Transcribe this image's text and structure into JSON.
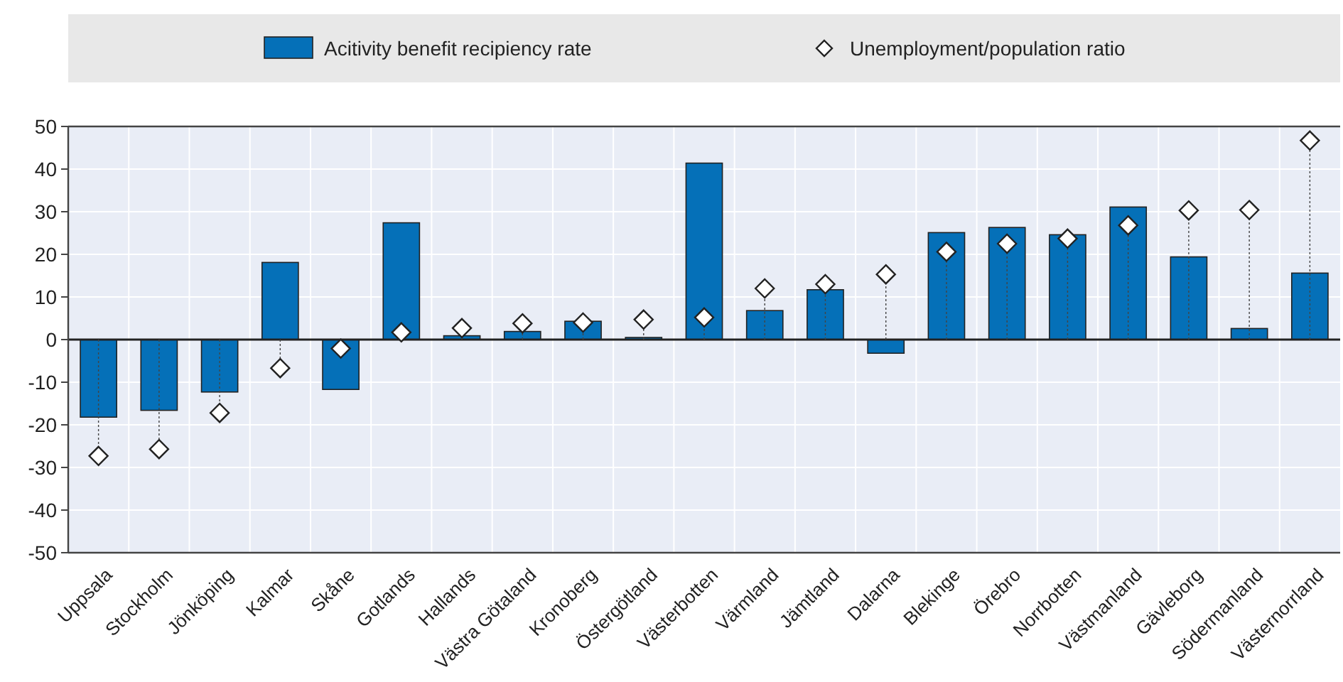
{
  "chart_data": {
    "type": "bar",
    "categories": [
      "Uppsala",
      "Stockholm",
      "Jönköping",
      "Kalmar",
      "Skåne",
      "Gotlands",
      "Hallands",
      "Västra Götaland",
      "Kronoberg",
      "Östergötland",
      "Västerbotten",
      "Värmland",
      "Jämtland",
      "Dalarna",
      "Blekinge",
      "Örebro",
      "Norrbotten",
      "Västmanland",
      "Gävleborg",
      "Södermanland",
      "Västernorrland"
    ],
    "series": [
      {
        "name": "Acitivity benefit recipiency rate",
        "color": "#0570b8",
        "values": [
          -18.2,
          -16.6,
          -12.3,
          18.1,
          -11.7,
          27.4,
          0.9,
          1.9,
          4.3,
          0.5,
          41.4,
          6.8,
          11.7,
          -3.2,
          25.1,
          26.3,
          24.6,
          31.1,
          19.4,
          2.6,
          15.6
        ]
      },
      {
        "name": "Unemployment/population ratio",
        "type": "scatter",
        "color": "#ffffff",
        "marker": "diamond",
        "values": [
          -27.3,
          -25.7,
          -17.2,
          -6.7,
          -2.1,
          1.7,
          2.7,
          3.8,
          4.0,
          4.7,
          5.2,
          12.0,
          13.0,
          15.3,
          20.6,
          22.5,
          23.7,
          26.8,
          30.3,
          30.4,
          46.7
        ]
      }
    ],
    "ylim": [
      -50,
      50
    ],
    "yticks": [
      -50,
      -40,
      -30,
      -20,
      -10,
      0,
      10,
      20,
      30,
      40,
      50
    ],
    "grid": true,
    "legend": "top"
  }
}
